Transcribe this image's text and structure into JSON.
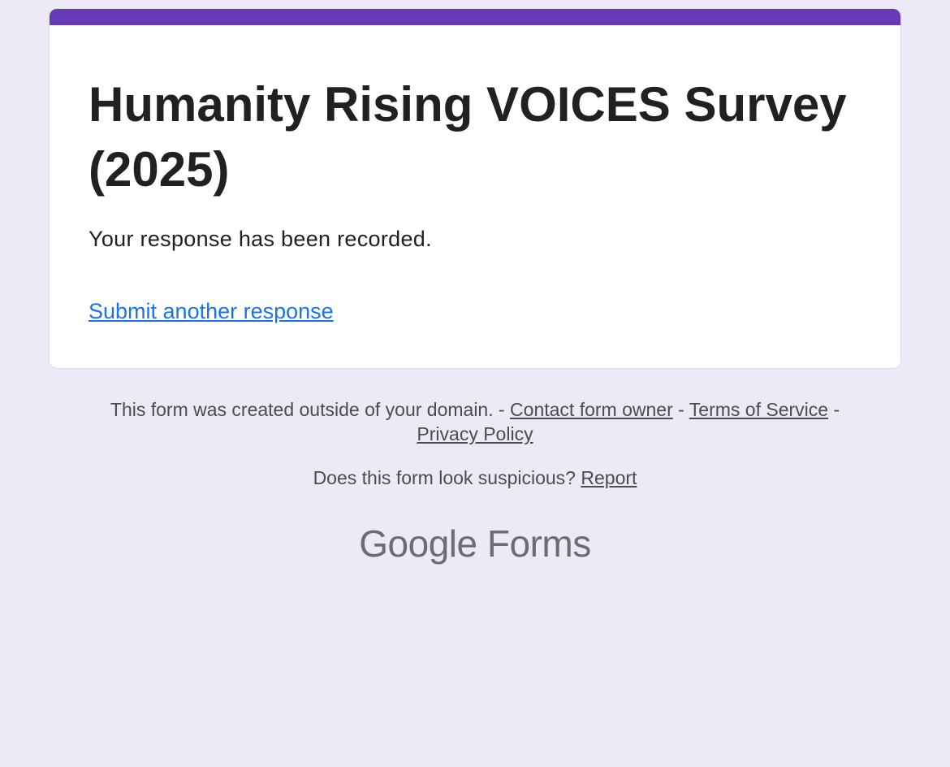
{
  "form": {
    "title": "Humanity Rising VOICES Survey (2025)",
    "message": "Your response has been recorded.",
    "submit_another": "Submit another response",
    "accent_color": "#673ab7"
  },
  "footer": {
    "domain_notice": "This form was created outside of your domain. - ",
    "contact": "Contact form owner",
    "sep1": " - ",
    "terms": "Terms of Service",
    "sep2": " - ",
    "privacy": "Privacy Policy",
    "suspicious": "Does this form look suspicious? ",
    "report": "Report"
  },
  "logo": {
    "google": "Google",
    "forms": "Forms"
  }
}
